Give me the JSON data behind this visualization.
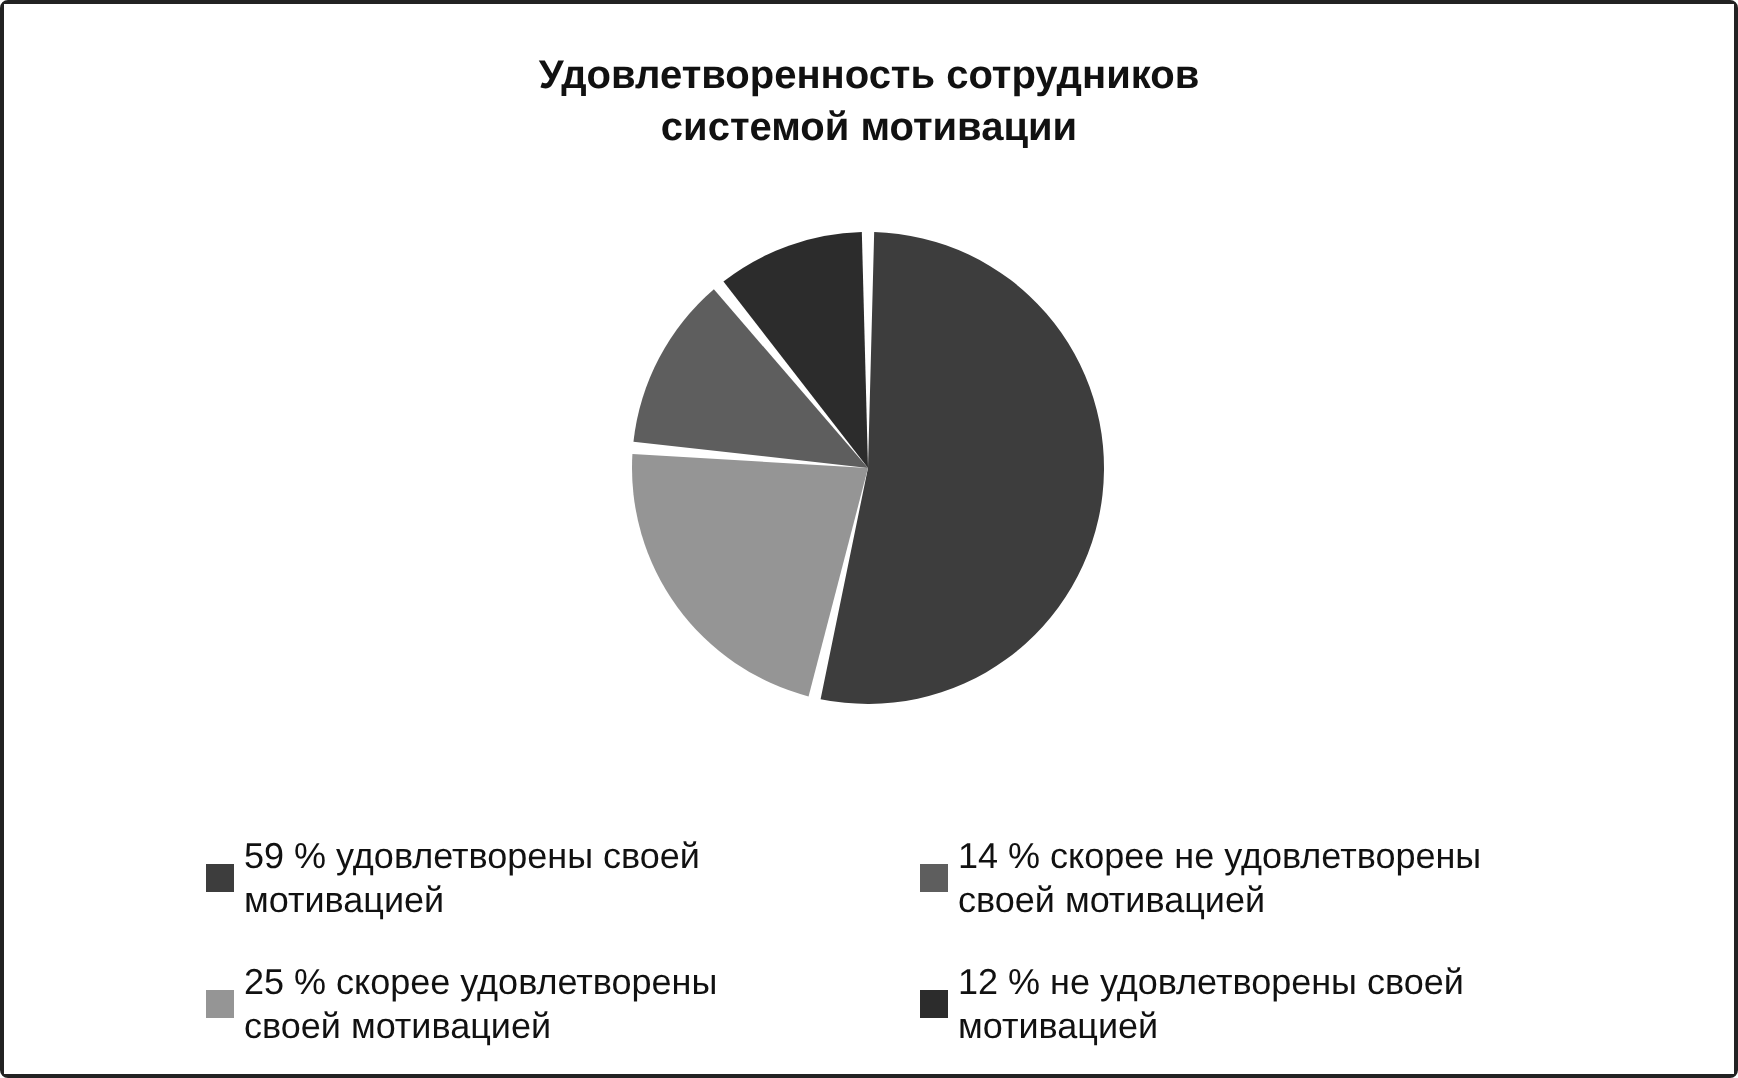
{
  "chart_data": {
    "type": "pie",
    "title": "Удовлетворенность сотрудников системой мотивации",
    "categories": [
      "59 % удовлетворены своей мотивацией",
      "25 % скорее удовлетворены своей мотивацией",
      "14 % скорее не удовлетворены своей мотивацией",
      "12 % не удовлетворены своей мотивацией"
    ],
    "values": [
      59,
      25,
      14,
      12
    ],
    "colors": [
      "#3d3d3d",
      "#959595",
      "#5e5e5e",
      "#2c2c2c"
    ],
    "legend": "bottom"
  }
}
